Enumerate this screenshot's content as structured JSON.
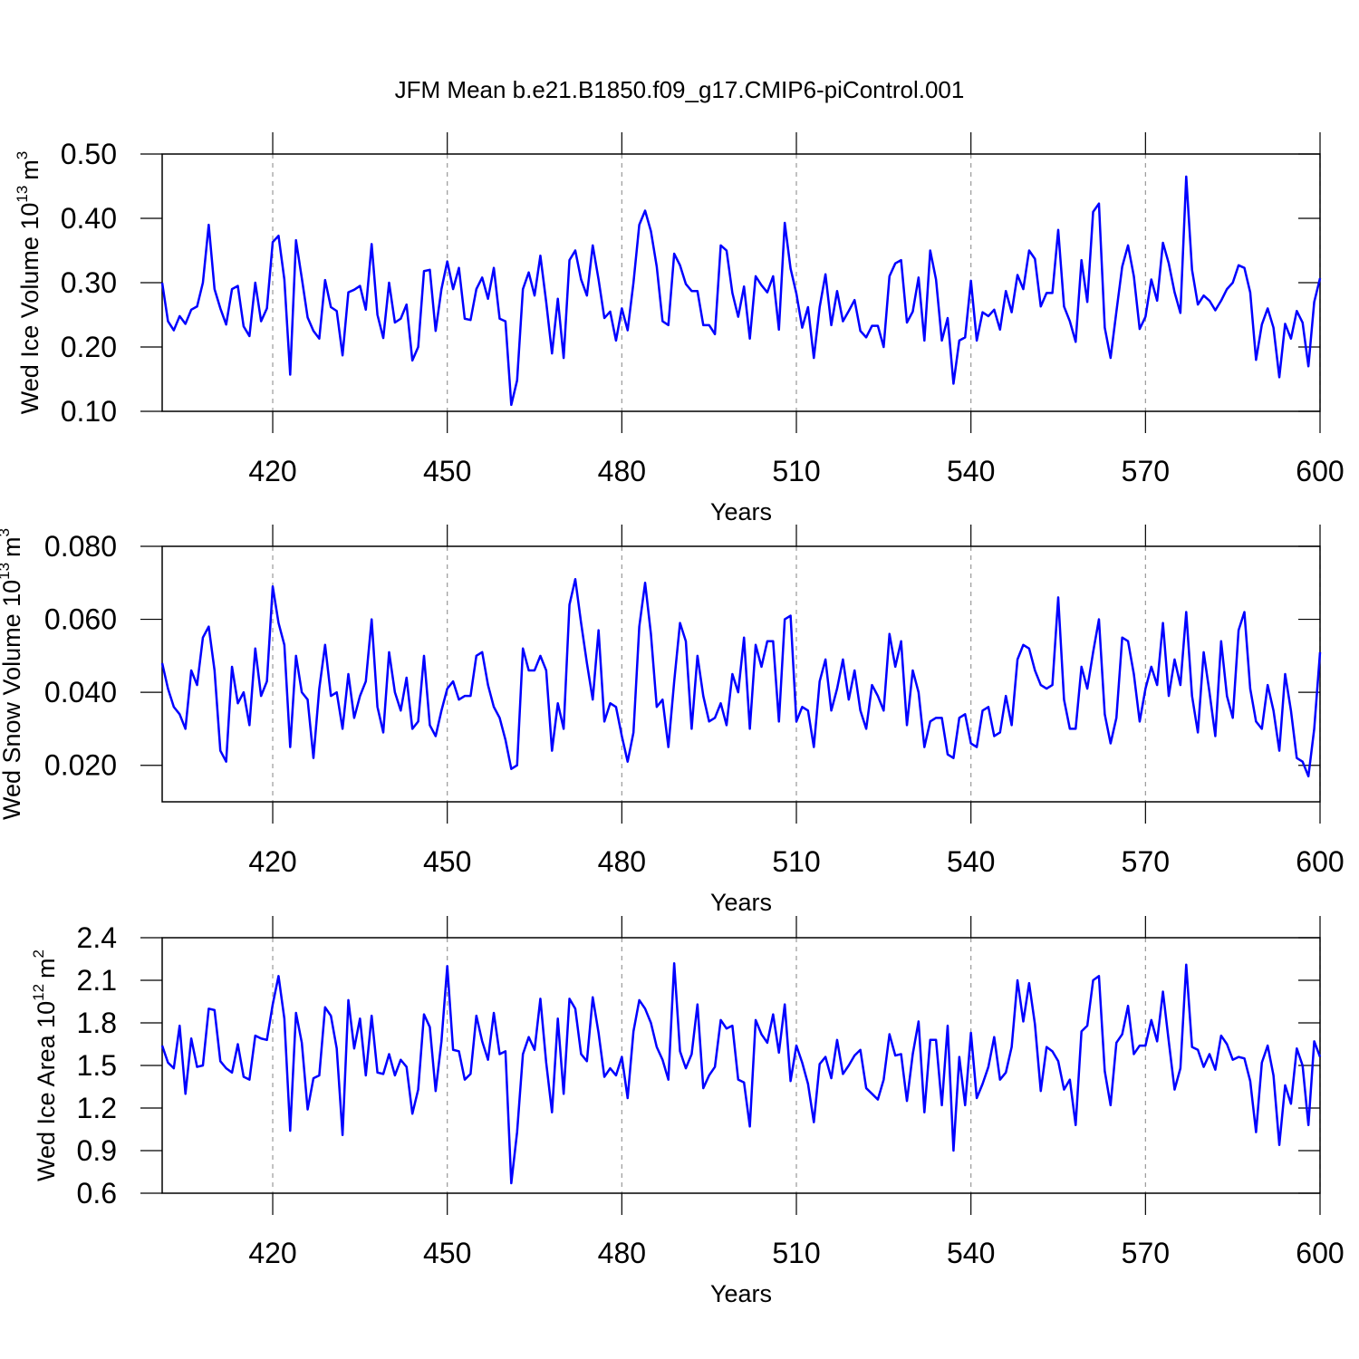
{
  "chart_data": [
    {
      "type": "line",
      "title": "JFM Mean b.e21.B1850.f09_g17.CMIP6-piControl.001",
      "ylabel": "Wed Ice Volume 10",
      "ylabel_exp": "13",
      "yunit": "m",
      "yunit_exp": "3",
      "xlabel": "Years",
      "xlim": [
        401,
        600
      ],
      "xticks": [
        420,
        450,
        480,
        510,
        540,
        570,
        600
      ],
      "ylim": [
        0.1,
        0.5
      ],
      "yticks": [
        {
          "value": 0.1,
          "label": "0.10"
        },
        {
          "value": 0.2,
          "label": "0.20"
        },
        {
          "value": 0.3,
          "label": "0.30"
        },
        {
          "value": 0.4,
          "label": "0.40"
        },
        {
          "value": 0.5,
          "label": "0.50"
        }
      ],
      "grid": true,
      "color": "#0000ff",
      "x": [
        401,
        402,
        403,
        404,
        405,
        406,
        407,
        408,
        409,
        410,
        411,
        412,
        413,
        414,
        415,
        416,
        417,
        418,
        419,
        420,
        421,
        422,
        423,
        424,
        425,
        426,
        427,
        428,
        429,
        430,
        431,
        432,
        433,
        434,
        435,
        436,
        437,
        438,
        439,
        440,
        441,
        442,
        443,
        444,
        445,
        446,
        447,
        448,
        449,
        450,
        451,
        452,
        453,
        454,
        455,
        456,
        457,
        458,
        459,
        460,
        461,
        462,
        463,
        464,
        465,
        466,
        467,
        468,
        469,
        470,
        471,
        472,
        473,
        474,
        475,
        476,
        477,
        478,
        479,
        480,
        481,
        482,
        483,
        484,
        485,
        486,
        487,
        488,
        489,
        490,
        491,
        492,
        493,
        494,
        495,
        496,
        497,
        498,
        499,
        500,
        501,
        502,
        503,
        504,
        505,
        506,
        507,
        508,
        509,
        510,
        511,
        512,
        513,
        514,
        515,
        516,
        517,
        518,
        519,
        520,
        521,
        522,
        523,
        524,
        525,
        526,
        527,
        528,
        529,
        530,
        531,
        532,
        533,
        534,
        535,
        536,
        537,
        538,
        539,
        540,
        541,
        542,
        543,
        544,
        545,
        546,
        547,
        548,
        549,
        550,
        551,
        552,
        553,
        554,
        555,
        556,
        557,
        558,
        559,
        560,
        561,
        562,
        563,
        564,
        565,
        566,
        567,
        568,
        569,
        570,
        571,
        572,
        573,
        574,
        575,
        576,
        577,
        578,
        579,
        580,
        581,
        582,
        583,
        584,
        585,
        586,
        587,
        588,
        589,
        590,
        591,
        592,
        593,
        594,
        595,
        596,
        597,
        598,
        599,
        600
      ],
      "values": [
        0.3,
        0.24,
        0.226,
        0.248,
        0.236,
        0.258,
        0.263,
        0.3,
        0.39,
        0.29,
        0.26,
        0.235,
        0.29,
        0.295,
        0.232,
        0.217,
        0.3,
        0.24,
        0.26,
        0.363,
        0.373,
        0.305,
        0.157,
        0.366,
        0.307,
        0.246,
        0.225,
        0.213,
        0.304,
        0.262,
        0.256,
        0.187,
        0.285,
        0.289,
        0.295,
        0.258,
        0.36,
        0.25,
        0.214,
        0.3,
        0.238,
        0.244,
        0.266,
        0.179,
        0.2,
        0.318,
        0.32,
        0.225,
        0.29,
        0.333,
        0.29,
        0.323,
        0.244,
        0.242,
        0.29,
        0.308,
        0.275,
        0.323,
        0.244,
        0.24,
        0.11,
        0.148,
        0.29,
        0.316,
        0.28,
        0.342,
        0.27,
        0.19,
        0.275,
        0.183,
        0.335,
        0.35,
        0.305,
        0.28,
        0.358,
        0.305,
        0.245,
        0.255,
        0.21,
        0.26,
        0.226,
        0.3,
        0.39,
        0.412,
        0.38,
        0.325,
        0.24,
        0.234,
        0.345,
        0.327,
        0.298,
        0.287,
        0.287,
        0.234,
        0.234,
        0.22,
        0.358,
        0.35,
        0.284,
        0.247,
        0.294,
        0.213,
        0.31,
        0.296,
        0.285,
        0.31,
        0.227,
        0.393,
        0.322,
        0.283,
        0.23,
        0.262,
        0.183,
        0.262,
        0.313,
        0.234,
        0.287,
        0.24,
        0.256,
        0.273,
        0.225,
        0.215,
        0.233,
        0.233,
        0.2,
        0.31,
        0.33,
        0.335,
        0.238,
        0.255,
        0.308,
        0.21,
        0.35,
        0.305,
        0.21,
        0.245,
        0.143,
        0.21,
        0.215,
        0.303,
        0.21,
        0.254,
        0.248,
        0.258,
        0.227,
        0.287,
        0.254,
        0.312,
        0.29,
        0.35,
        0.337,
        0.263,
        0.284,
        0.284,
        0.382,
        0.263,
        0.24,
        0.208,
        0.335,
        0.27,
        0.41,
        0.423,
        0.23,
        0.183,
        0.255,
        0.325,
        0.358,
        0.31,
        0.228,
        0.247,
        0.305,
        0.272,
        0.362,
        0.33,
        0.285,
        0.253,
        0.465,
        0.32,
        0.266,
        0.28,
        0.272,
        0.257,
        0.272,
        0.29,
        0.3,
        0.327,
        0.323,
        0.285,
        0.18,
        0.235,
        0.26,
        0.23,
        0.153,
        0.236,
        0.213,
        0.256,
        0.238,
        0.17,
        0.27,
        0.307
      ]
    },
    {
      "type": "line",
      "ylabel": "Wed Snow Volume 10",
      "ylabel_exp": "13",
      "yunit": "m",
      "yunit_exp": "3",
      "xlabel": "Years",
      "xlim": [
        401,
        600
      ],
      "xticks": [
        420,
        450,
        480,
        510,
        540,
        570,
        600
      ],
      "ylim": [
        0.01,
        0.08
      ],
      "yticks": [
        {
          "value": 0.02,
          "label": "0.020"
        },
        {
          "value": 0.04,
          "label": "0.040"
        },
        {
          "value": 0.06,
          "label": "0.060"
        },
        {
          "value": 0.08,
          "label": "0.080"
        }
      ],
      "grid": true,
      "color": "#0000ff",
      "x": [
        401,
        402,
        403,
        404,
        405,
        406,
        407,
        408,
        409,
        410,
        411,
        412,
        413,
        414,
        415,
        416,
        417,
        418,
        419,
        420,
        421,
        422,
        423,
        424,
        425,
        426,
        427,
        428,
        429,
        430,
        431,
        432,
        433,
        434,
        435,
        436,
        437,
        438,
        439,
        440,
        441,
        442,
        443,
        444,
        445,
        446,
        447,
        448,
        449,
        450,
        451,
        452,
        453,
        454,
        455,
        456,
        457,
        458,
        459,
        460,
        461,
        462,
        463,
        464,
        465,
        466,
        467,
        468,
        469,
        470,
        471,
        472,
        473,
        474,
        475,
        476,
        477,
        478,
        479,
        480,
        481,
        482,
        483,
        484,
        485,
        486,
        487,
        488,
        489,
        490,
        491,
        492,
        493,
        494,
        495,
        496,
        497,
        498,
        499,
        500,
        501,
        502,
        503,
        504,
        505,
        506,
        507,
        508,
        509,
        510,
        511,
        512,
        513,
        514,
        515,
        516,
        517,
        518,
        519,
        520,
        521,
        522,
        523,
        524,
        525,
        526,
        527,
        528,
        529,
        530,
        531,
        532,
        533,
        534,
        535,
        536,
        537,
        538,
        539,
        540,
        541,
        542,
        543,
        544,
        545,
        546,
        547,
        548,
        549,
        550,
        551,
        552,
        553,
        554,
        555,
        556,
        557,
        558,
        559,
        560,
        561,
        562,
        563,
        564,
        565,
        566,
        567,
        568,
        569,
        570,
        571,
        572,
        573,
        574,
        575,
        576,
        577,
        578,
        579,
        580,
        581,
        582,
        583,
        584,
        585,
        586,
        587,
        588,
        589,
        590,
        591,
        592,
        593,
        594,
        595,
        596,
        597,
        598,
        599,
        600
      ],
      "values": [
        0.048,
        0.041,
        0.036,
        0.034,
        0.03,
        0.046,
        0.042,
        0.055,
        0.058,
        0.046,
        0.024,
        0.021,
        0.047,
        0.037,
        0.04,
        0.031,
        0.052,
        0.039,
        0.043,
        0.069,
        0.059,
        0.053,
        0.025,
        0.05,
        0.04,
        0.038,
        0.022,
        0.041,
        0.053,
        0.039,
        0.04,
        0.03,
        0.045,
        0.033,
        0.039,
        0.043,
        0.06,
        0.036,
        0.029,
        0.051,
        0.04,
        0.035,
        0.044,
        0.03,
        0.032,
        0.05,
        0.031,
        0.028,
        0.035,
        0.041,
        0.043,
        0.038,
        0.039,
        0.039,
        0.05,
        0.051,
        0.042,
        0.036,
        0.033,
        0.027,
        0.019,
        0.02,
        0.052,
        0.046,
        0.046,
        0.05,
        0.046,
        0.024,
        0.037,
        0.03,
        0.064,
        0.071,
        0.059,
        0.048,
        0.038,
        0.057,
        0.032,
        0.037,
        0.036,
        0.028,
        0.021,
        0.029,
        0.058,
        0.07,
        0.056,
        0.036,
        0.038,
        0.025,
        0.043,
        0.059,
        0.054,
        0.03,
        0.05,
        0.039,
        0.032,
        0.033,
        0.037,
        0.031,
        0.045,
        0.04,
        0.055,
        0.03,
        0.053,
        0.047,
        0.054,
        0.054,
        0.032,
        0.06,
        0.061,
        0.032,
        0.036,
        0.035,
        0.025,
        0.043,
        0.049,
        0.035,
        0.041,
        0.049,
        0.038,
        0.046,
        0.035,
        0.03,
        0.042,
        0.039,
        0.035,
        0.056,
        0.047,
        0.054,
        0.031,
        0.046,
        0.04,
        0.025,
        0.032,
        0.033,
        0.033,
        0.023,
        0.022,
        0.033,
        0.034,
        0.026,
        0.025,
        0.035,
        0.036,
        0.028,
        0.029,
        0.039,
        0.031,
        0.049,
        0.053,
        0.052,
        0.046,
        0.042,
        0.041,
        0.042,
        0.066,
        0.038,
        0.03,
        0.03,
        0.047,
        0.041,
        0.051,
        0.06,
        0.034,
        0.026,
        0.033,
        0.055,
        0.054,
        0.045,
        0.032,
        0.041,
        0.047,
        0.042,
        0.059,
        0.039,
        0.049,
        0.042,
        0.062,
        0.039,
        0.029,
        0.051,
        0.04,
        0.028,
        0.054,
        0.039,
        0.033,
        0.057,
        0.062,
        0.041,
        0.032,
        0.03,
        0.042,
        0.035,
        0.024,
        0.045,
        0.035,
        0.022,
        0.021,
        0.017,
        0.03,
        0.051
      ]
    },
    {
      "type": "line",
      "ylabel": "Wed Ice Area 10",
      "ylabel_exp": "12",
      "yunit": "m",
      "yunit_exp": "2",
      "xlabel": "Years",
      "xlim": [
        401,
        600
      ],
      "xticks": [
        420,
        450,
        480,
        510,
        540,
        570,
        600
      ],
      "ylim": [
        0.6,
        2.4
      ],
      "yticks": [
        0.6,
        0.9,
        1.2,
        1.5,
        1.8,
        2.1,
        2.4
      ],
      "grid": true,
      "color": "#0000ff",
      "x": [
        401,
        402,
        403,
        404,
        405,
        406,
        407,
        408,
        409,
        410,
        411,
        412,
        413,
        414,
        415,
        416,
        417,
        418,
        419,
        420,
        421,
        422,
        423,
        424,
        425,
        426,
        427,
        428,
        429,
        430,
        431,
        432,
        433,
        434,
        435,
        436,
        437,
        438,
        439,
        440,
        441,
        442,
        443,
        444,
        445,
        446,
        447,
        448,
        449,
        450,
        451,
        452,
        453,
        454,
        455,
        456,
        457,
        458,
        459,
        460,
        461,
        462,
        463,
        464,
        465,
        466,
        467,
        468,
        469,
        470,
        471,
        472,
        473,
        474,
        475,
        476,
        477,
        478,
        479,
        480,
        481,
        482,
        483,
        484,
        485,
        486,
        487,
        488,
        489,
        490,
        491,
        492,
        493,
        494,
        495,
        496,
        497,
        498,
        499,
        500,
        501,
        502,
        503,
        504,
        505,
        506,
        507,
        508,
        509,
        510,
        511,
        512,
        513,
        514,
        515,
        516,
        517,
        518,
        519,
        520,
        521,
        522,
        523,
        524,
        525,
        526,
        527,
        528,
        529,
        530,
        531,
        532,
        533,
        534,
        535,
        536,
        537,
        538,
        539,
        540,
        541,
        542,
        543,
        544,
        545,
        546,
        547,
        548,
        549,
        550,
        551,
        552,
        553,
        554,
        555,
        556,
        557,
        558,
        559,
        560,
        561,
        562,
        563,
        564,
        565,
        566,
        567,
        568,
        569,
        570,
        571,
        572,
        573,
        574,
        575,
        576,
        577,
        578,
        579,
        580,
        581,
        582,
        583,
        584,
        585,
        586,
        587,
        588,
        589,
        590,
        591,
        592,
        593,
        594,
        595,
        596,
        597,
        598,
        599,
        600
      ],
      "values": [
        1.64,
        1.52,
        1.48,
        1.78,
        1.3,
        1.69,
        1.49,
        1.5,
        1.9,
        1.89,
        1.53,
        1.48,
        1.45,
        1.65,
        1.42,
        1.4,
        1.71,
        1.69,
        1.68,
        1.93,
        2.13,
        1.83,
        1.04,
        1.87,
        1.66,
        1.19,
        1.41,
        1.43,
        1.91,
        1.85,
        1.62,
        1.01,
        1.96,
        1.62,
        1.83,
        1.43,
        1.85,
        1.45,
        1.44,
        1.58,
        1.43,
        1.54,
        1.49,
        1.16,
        1.33,
        1.86,
        1.77,
        1.32,
        1.67,
        2.2,
        1.61,
        1.6,
        1.4,
        1.44,
        1.85,
        1.67,
        1.54,
        1.87,
        1.58,
        1.6,
        0.67,
        1.03,
        1.58,
        1.7,
        1.61,
        1.97,
        1.52,
        1.17,
        1.83,
        1.3,
        1.97,
        1.9,
        1.58,
        1.53,
        1.98,
        1.73,
        1.42,
        1.48,
        1.43,
        1.56,
        1.27,
        1.74,
        1.96,
        1.9,
        1.8,
        1.63,
        1.54,
        1.4,
        2.22,
        1.6,
        1.48,
        1.58,
        1.93,
        1.34,
        1.43,
        1.49,
        1.82,
        1.76,
        1.78,
        1.4,
        1.38,
        1.07,
        1.82,
        1.72,
        1.66,
        1.86,
        1.59,
        1.93,
        1.39,
        1.64,
        1.52,
        1.37,
        1.1,
        1.51,
        1.56,
        1.41,
        1.68,
        1.44,
        1.5,
        1.57,
        1.61,
        1.34,
        1.3,
        1.26,
        1.4,
        1.72,
        1.57,
        1.58,
        1.25,
        1.58,
        1.81,
        1.17,
        1.68,
        1.68,
        1.22,
        1.78,
        0.9,
        1.56,
        1.22,
        1.73,
        1.27,
        1.37,
        1.49,
        1.7,
        1.4,
        1.45,
        1.63,
        2.1,
        1.81,
        2.08,
        1.79,
        1.32,
        1.63,
        1.6,
        1.53,
        1.33,
        1.4,
        1.08,
        1.74,
        1.78,
        2.1,
        2.13,
        1.46,
        1.22,
        1.66,
        1.72,
        1.92,
        1.58,
        1.64,
        1.64,
        1.82,
        1.67,
        2.02,
        1.67,
        1.33,
        1.48,
        2.21,
        1.63,
        1.61,
        1.49,
        1.58,
        1.47,
        1.71,
        1.65,
        1.54,
        1.56,
        1.55,
        1.39,
        1.03,
        1.52,
        1.64,
        1.43,
        0.94,
        1.36,
        1.23,
        1.62,
        1.5,
        1.08,
        1.67,
        1.56
      ]
    }
  ]
}
